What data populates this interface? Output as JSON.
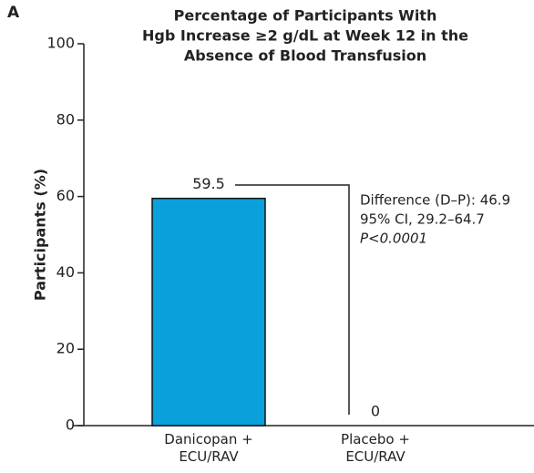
{
  "chart_data": {
    "type": "bar",
    "panel_label": "A",
    "title": [
      "Percentage of Participants With",
      "Hgb Increase ≥2 g/dL at Week 12 in the",
      "Absence of Blood Transfusion"
    ],
    "categories": [
      "Danicopan + ECU/RAV",
      "Placebo + ECU/RAV"
    ],
    "values": [
      59.5,
      0
    ],
    "value_labels": [
      "59.5",
      "0"
    ],
    "color": "#0aa0dc",
    "ylabel": "Participants (%)",
    "ylim": [
      0,
      100
    ],
    "yticks": [
      0,
      20,
      40,
      60,
      80,
      100
    ],
    "annotation": [
      "Difference (D–P): 46.9",
      "95% CI, 29.2–64.7",
      "P<0.0001"
    ]
  }
}
